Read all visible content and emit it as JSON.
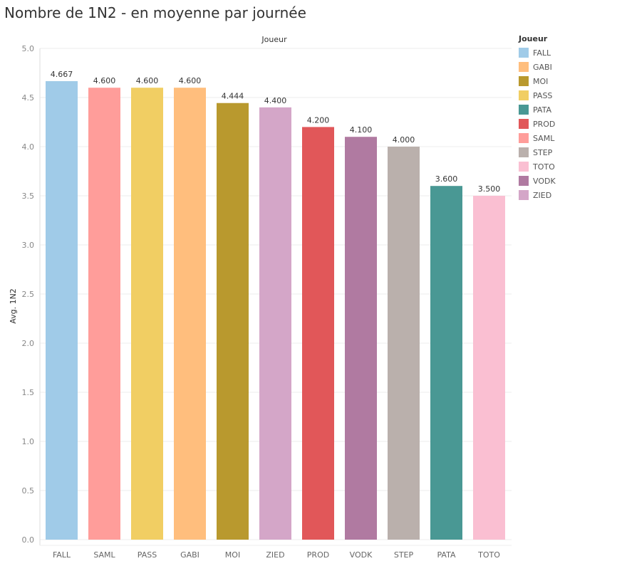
{
  "chart_data": {
    "type": "bar",
    "title": "Nombre de 1N2 - en moyenne par journée",
    "header": "Joueur",
    "ylabel": "Avg. 1N2",
    "xlabel": "",
    "ylim": [
      0,
      5
    ],
    "yticks": [
      "0.0",
      "0.5",
      "1.0",
      "1.5",
      "2.0",
      "2.5",
      "3.0",
      "3.5",
      "4.0",
      "4.5",
      "5.0"
    ],
    "categories": [
      "FALL",
      "SAML",
      "PASS",
      "GABI",
      "MOI",
      "ZIED",
      "PROD",
      "VODK",
      "STEP",
      "PATA",
      "TOTO"
    ],
    "values": [
      4.667,
      4.6,
      4.6,
      4.6,
      4.444,
      4.4,
      4.2,
      4.1,
      4.0,
      3.6,
      3.5
    ],
    "data_labels": [
      "4.667",
      "4.600",
      "4.600",
      "4.600",
      "4.444",
      "4.400",
      "4.200",
      "4.100",
      "4.000",
      "3.600",
      "3.500"
    ],
    "legend": {
      "title": "Joueur",
      "placement": "right",
      "items": [
        {
          "name": "FALL",
          "color": "#a0cbe8"
        },
        {
          "name": "GABI",
          "color": "#ffbe7d"
        },
        {
          "name": "MOI",
          "color": "#b9992e"
        },
        {
          "name": "PASS",
          "color": "#f1ce63"
        },
        {
          "name": "PATA",
          "color": "#499894"
        },
        {
          "name": "PROD",
          "color": "#e15759"
        },
        {
          "name": "SAML",
          "color": "#ff9d9a"
        },
        {
          "name": "STEP",
          "color": "#bab0ac"
        },
        {
          "name": "TOTO",
          "color": "#fabfd2"
        },
        {
          "name": "VODK",
          "color": "#b07aa1"
        },
        {
          "name": "ZIED",
          "color": "#d4a6c8"
        }
      ]
    }
  }
}
